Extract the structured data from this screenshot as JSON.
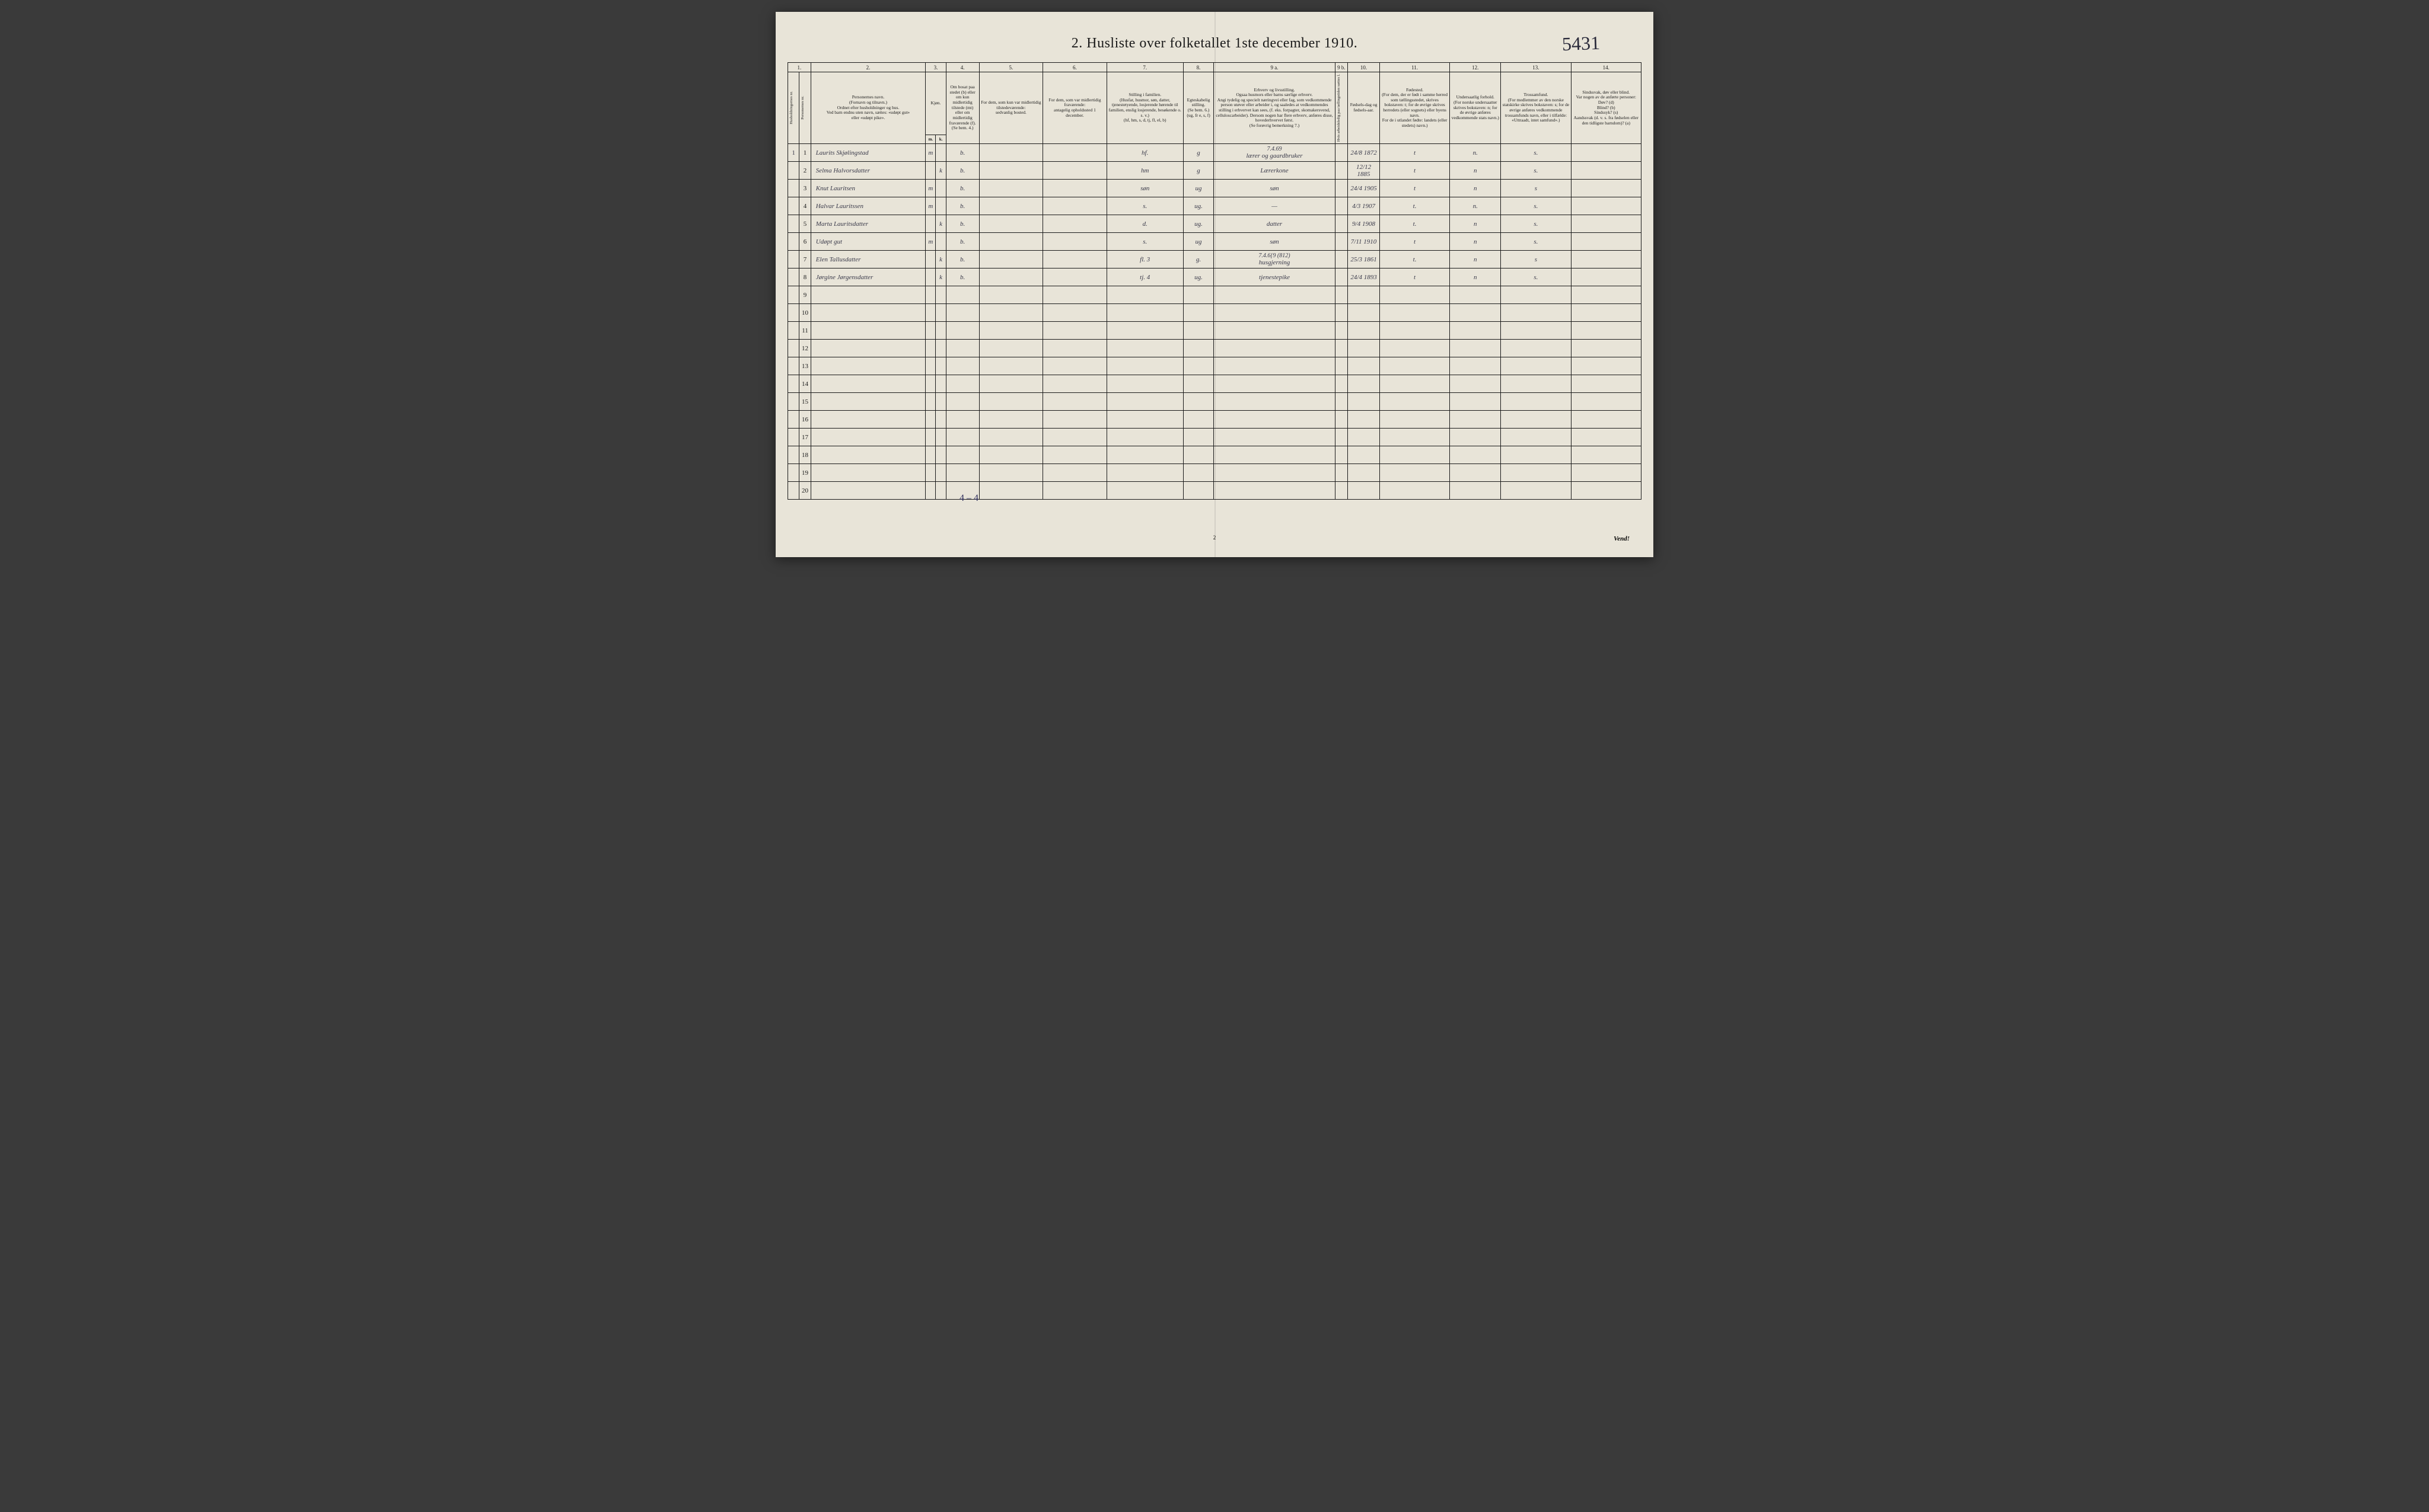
{
  "page_number_handwritten": "5431",
  "title": "2.  Husliste over folketallet 1ste december 1910.",
  "footer": "Vend!",
  "bottom_page_num": "2",
  "tally": "4 – 4",
  "column_numbers": [
    "1.",
    "",
    "2.",
    "3.",
    "",
    "4.",
    "5.",
    "6.",
    "7.",
    "8.",
    "9 a.",
    "9 b.",
    "10.",
    "11.",
    "12.",
    "13.",
    "14."
  ],
  "headers": {
    "c1": "Husholdningernes nr.",
    "c1b": "Personernes nr.",
    "c2": "Personernes navn.\n(Fornavn og tilnavn.)\nOrdnet efter husholdninger og hus.\nVed barn endnu uten navn, sættes: «udøpt gut»\neller «udøpt pike».",
    "c3": "Kjøn.",
    "c3a": "Mænd.",
    "c3b": "Kvinder.",
    "c4": "Om bosat paa stedet (b) eller om kun midlertidig tilstede (mt) eller om midlertidig fraværende (f).\n(Se bem. 4.)",
    "c5": "For dem, som kun var midlertidig tilstedeværende:\nsedvanlig bosted.",
    "c6": "For dem, som var midlertidig fraværende:\nantagelig opholdssted 1 december.",
    "c7": "Stilling i familien.\n(Husfar, husmor, søn, datter, tjenestetyende, losjerende hørende til familien, enslig losjerende, besøkende o. s. v.)\n(hf, hm, s, d, tj, fl, el, b)",
    "c8": "Egteskabelig stilling.\n(Se bem. 6.)\n(ug, fr e, s, f)",
    "c9a": "Erhverv og livsstilling.\nOgsaa husmors eller barns særlige erhverv.\nAngi tydelig og specielt næringvei eller fag, som vedkommende person utøver eller arbeider i, og saaledes at vedkommendes stilling i erhvervet kan sees, (f. eks. forpagter, skomakersvend, celluloscarbeider). Dersom nogen har flere erhverv, anføres disse, hovederhvervet først.\n(Se forøvrig bemerkning 7.)",
    "c9b": "Hvis arbeidsledig paa tællingstiden sættes l.",
    "c10": "Fødsels-dag og fødsels-aar.",
    "c11": "Fødested.\n(For dem, der er født i samme herred som tællingsstedet, skrives bokstaven: t; for de øvrige skrives herredets (eller sognets) eller byens navn.\nFor de i utlandet fødte: landets (eller stedets) navn.)",
    "c12": "Undersaatlig forhold.\n(For norske undersaatter skrives bokstaven: n; for de øvrige anføres vedkommende stats navn.)",
    "c13": "Trossamfund.\n(For medlemmer av den norske statskirke skrives bokstaven: s; for de øvrige anføres vedkommende trossamfunds navn, eller i tilfælde: «Uttraadt, intet samfund».)",
    "c14": "Sindssvak, døv eller blind.\nVar nogen av de anførte personer:\nDøv? (d)\nBlind? (b)\nSindssyk? (s)\nAandssvak (d. v. s. fra fødselen eller den tidligste barndom)? (a)"
  },
  "col_widths": {
    "c1": 18,
    "c1b": 18,
    "c2": 180,
    "c3a": 16,
    "c3b": 16,
    "c4": 52,
    "c5": 100,
    "c6": 100,
    "c7": 120,
    "c8": 48,
    "c9a": 190,
    "c9b": 20,
    "c10": 50,
    "c11": 110,
    "c12": 80,
    "c13": 110,
    "c14": 110
  },
  "rows": [
    {
      "hnum": "1",
      "pnum": "1",
      "name": "Laurits Skjølingstad",
      "m": "m",
      "k": "",
      "c4": "b.",
      "c5": "",
      "c6": "",
      "c7": "hf.",
      "c8": "g",
      "c9a_top": "7.4.69",
      "c9a": "lærer og gaardbruker",
      "c10": "24/8 1872",
      "c11": "t",
      "c12": "n.",
      "c13": "s.",
      "c14": ""
    },
    {
      "hnum": "",
      "pnum": "2",
      "name": "Selma Halvorsdatter",
      "m": "",
      "k": "k",
      "c4": "b.",
      "c5": "",
      "c6": "",
      "c7": "hm",
      "c8": "g",
      "c9a": "Lærerkone",
      "c10": "12/12 1885",
      "c11": "t",
      "c12": "n",
      "c13": "s.",
      "c14": ""
    },
    {
      "hnum": "",
      "pnum": "3",
      "name": "Knut Lauritsen",
      "m": "m",
      "k": "",
      "c4": "b.",
      "c5": "",
      "c6": "",
      "c7": "søn",
      "c8": "ug",
      "c9a": "søn",
      "c10": "24/4 1905",
      "c11": "t",
      "c12": "n",
      "c13": "s",
      "c14": ""
    },
    {
      "hnum": "",
      "pnum": "4",
      "name": "Halvar Lauritssen",
      "m": "m",
      "k": "",
      "c4": "b.",
      "c5": "",
      "c6": "",
      "c7": "s.",
      "c8": "ug.",
      "c9a": "—",
      "c10": "4/3 1907",
      "c11": "t.",
      "c12": "n.",
      "c13": "s.",
      "c14": ""
    },
    {
      "hnum": "",
      "pnum": "5",
      "name": "Marta Lauritsdatter",
      "m": "",
      "k": "k",
      "c4": "b.",
      "c5": "",
      "c6": "",
      "c7": "d.",
      "c8": "ug.",
      "c9a": "datter",
      "c10": "9/4 1908",
      "c11": "t.",
      "c12": "n",
      "c13": "s.",
      "c14": ""
    },
    {
      "hnum": "",
      "pnum": "6",
      "name": "Udøpt  gut",
      "m": "m",
      "k": "",
      "c4": "b.",
      "c5": "",
      "c6": "",
      "c7": "s.",
      "c8": "ug",
      "c9a": "søn",
      "c10": "7/11 1910",
      "c11": "t",
      "c12": "n",
      "c13": "s.",
      "c14": ""
    },
    {
      "hnum": "",
      "pnum": "7",
      "name": "Elen Tallusdatter",
      "m": "",
      "k": "k",
      "c4": "b.",
      "c5": "",
      "c6": "",
      "c7": "fl.  3",
      "c8": "g.",
      "c9a_top": "7.4.6{9     (812)",
      "c9a": "husgjerning",
      "c10": "25/3 1861",
      "c11": "t.",
      "c12": "n",
      "c13": "s",
      "c14": ""
    },
    {
      "hnum": "",
      "pnum": "8",
      "name": "Jørgine Jørgensdatter",
      "m": "",
      "k": "k",
      "c4": "b.",
      "c5": "",
      "c6": "",
      "c7": "tj.  4",
      "c8": "ug.",
      "c9a": "tjenestepike",
      "c10": "24/4 1893",
      "c11": "t",
      "c12": "n",
      "c13": "s.",
      "c14": ""
    }
  ],
  "empty_rows": [
    9,
    10,
    11,
    12,
    13,
    14,
    15,
    16,
    17,
    18,
    19,
    20
  ]
}
